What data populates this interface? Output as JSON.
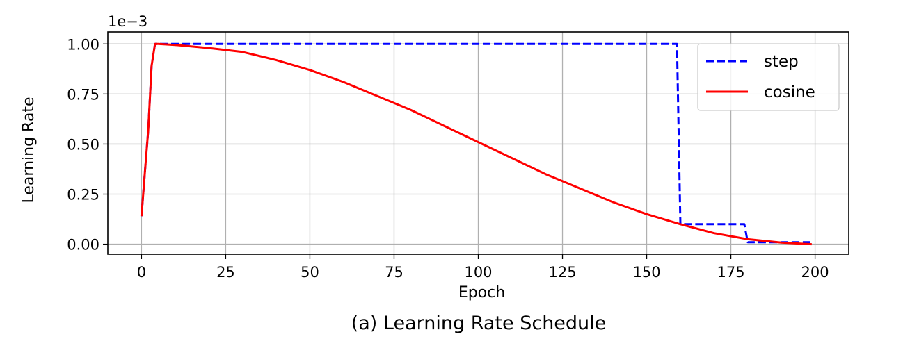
{
  "chart_data": {
    "type": "line",
    "title": "",
    "caption": "(a) Learning Rate Schedule",
    "xlabel": "Epoch",
    "ylabel": "Learning Rate",
    "y_scale_label": "1e−3",
    "xlim": [
      -10,
      210
    ],
    "ylim": [
      -0.05,
      1.06
    ],
    "x_ticks": [
      0,
      25,
      50,
      75,
      100,
      125,
      150,
      175,
      200
    ],
    "x_tick_labels": [
      "0",
      "25",
      "50",
      "75",
      "100",
      "125",
      "150",
      "175",
      "200"
    ],
    "y_ticks": [
      0.0,
      0.25,
      0.5,
      0.75,
      1.0
    ],
    "y_tick_labels": [
      "0.00",
      "0.25",
      "0.50",
      "0.75",
      "1.00"
    ],
    "grid": true,
    "legend_position": "top-right",
    "series": [
      {
        "name": "step",
        "color": "#0000ff",
        "linestyle": "dashed",
        "x": [
          0,
          1,
          2,
          3,
          4,
          5,
          159,
          160,
          179,
          180,
          199
        ],
        "y": [
          0.14,
          0.36,
          0.57,
          0.89,
          1.0,
          1.0,
          1.0,
          0.1,
          0.1,
          0.01,
          0.01
        ]
      },
      {
        "name": "cosine",
        "color": "#ff0000",
        "linestyle": "solid",
        "x": [
          0,
          1,
          2,
          3,
          4,
          5,
          10,
          20,
          30,
          40,
          50,
          60,
          70,
          80,
          90,
          100,
          110,
          120,
          130,
          140,
          150,
          160,
          170,
          180,
          190,
          199
        ],
        "y": [
          0.14,
          0.36,
          0.57,
          0.89,
          1.0,
          1.0,
          0.995,
          0.98,
          0.96,
          0.92,
          0.87,
          0.81,
          0.74,
          0.67,
          0.59,
          0.51,
          0.43,
          0.35,
          0.28,
          0.21,
          0.15,
          0.1,
          0.055,
          0.025,
          0.008,
          0.0
        ]
      }
    ]
  }
}
